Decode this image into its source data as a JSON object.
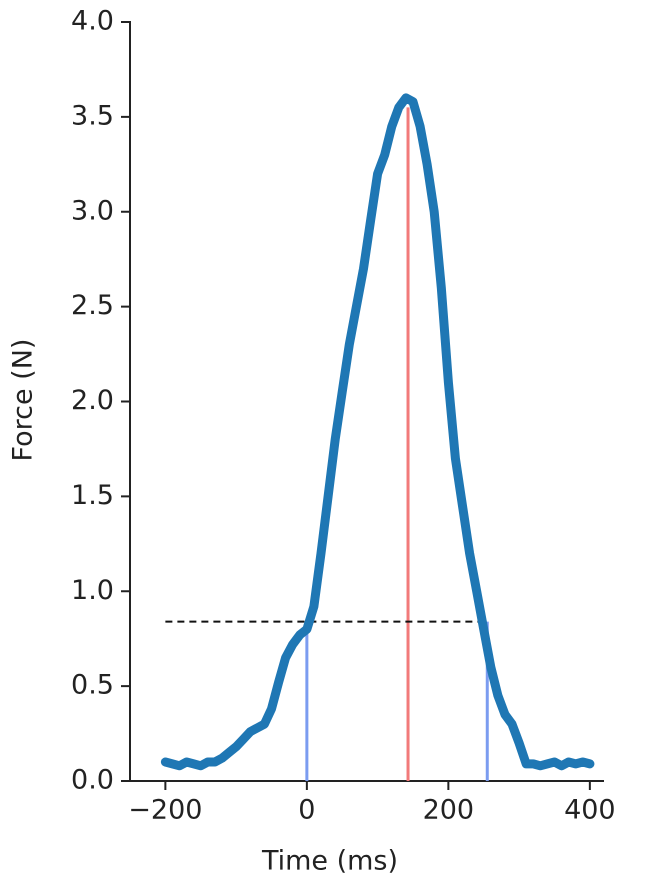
{
  "chart_data": {
    "type": "line",
    "xlabel": "Time (ms)",
    "ylabel": "Force (N)",
    "x": [
      -200,
      -190,
      -180,
      -170,
      -160,
      -150,
      -140,
      -130,
      -120,
      -110,
      -100,
      -90,
      -80,
      -70,
      -60,
      -50,
      -40,
      -30,
      -20,
      -10,
      0,
      10,
      20,
      30,
      40,
      50,
      60,
      70,
      80,
      90,
      100,
      110,
      120,
      130,
      140,
      150,
      160,
      170,
      180,
      190,
      200,
      210,
      220,
      230,
      240,
      250,
      260,
      270,
      280,
      290,
      300,
      310,
      320,
      330,
      340,
      350,
      360,
      370,
      380,
      390,
      400
    ],
    "series": [
      {
        "color": "#1f77b4",
        "values": [
          0.1,
          0.09,
          0.08,
          0.1,
          0.09,
          0.08,
          0.1,
          0.1,
          0.12,
          0.15,
          0.18,
          0.22,
          0.26,
          0.28,
          0.3,
          0.38,
          0.52,
          0.65,
          0.72,
          0.77,
          0.8,
          0.92,
          1.2,
          1.5,
          1.8,
          2.05,
          2.3,
          2.5,
          2.7,
          2.95,
          3.2,
          3.3,
          3.45,
          3.55,
          3.6,
          3.58,
          3.45,
          3.25,
          3.0,
          2.6,
          2.1,
          1.7,
          1.45,
          1.2,
          1.0,
          0.8,
          0.6,
          0.45,
          0.35,
          0.3,
          0.2,
          0.09,
          0.09,
          0.08,
          0.09,
          0.1,
          0.08,
          0.1,
          0.09,
          0.1,
          0.09
        ]
      }
    ],
    "threshold": 0.84,
    "vlines": [
      {
        "x": 0,
        "y": 0.84,
        "color": "#7b9cf0"
      },
      {
        "x": 143,
        "y": 3.55,
        "color": "#f27a7a"
      },
      {
        "x": 255,
        "y": 0.84,
        "color": "#7b9cf0"
      }
    ],
    "xlim": [
      -250,
      420
    ],
    "ylim": [
      0,
      4
    ],
    "xticks": [
      {
        "value": -200,
        "label": "−200"
      },
      0,
      200,
      400
    ],
    "yticks": [
      {
        "value": 0,
        "label": "0.0"
      },
      {
        "value": 0.5,
        "label": "0.5"
      },
      {
        "value": 1,
        "label": "1.0"
      },
      {
        "value": 1.5,
        "label": "1.5"
      },
      {
        "value": 2,
        "label": "2.0"
      },
      {
        "value": 2.5,
        "label": "2.5"
      },
      {
        "value": 3,
        "label": "3.0"
      },
      {
        "value": 3.5,
        "label": "3.5"
      },
      {
        "value": 4,
        "label": "4.0"
      }
    ]
  }
}
